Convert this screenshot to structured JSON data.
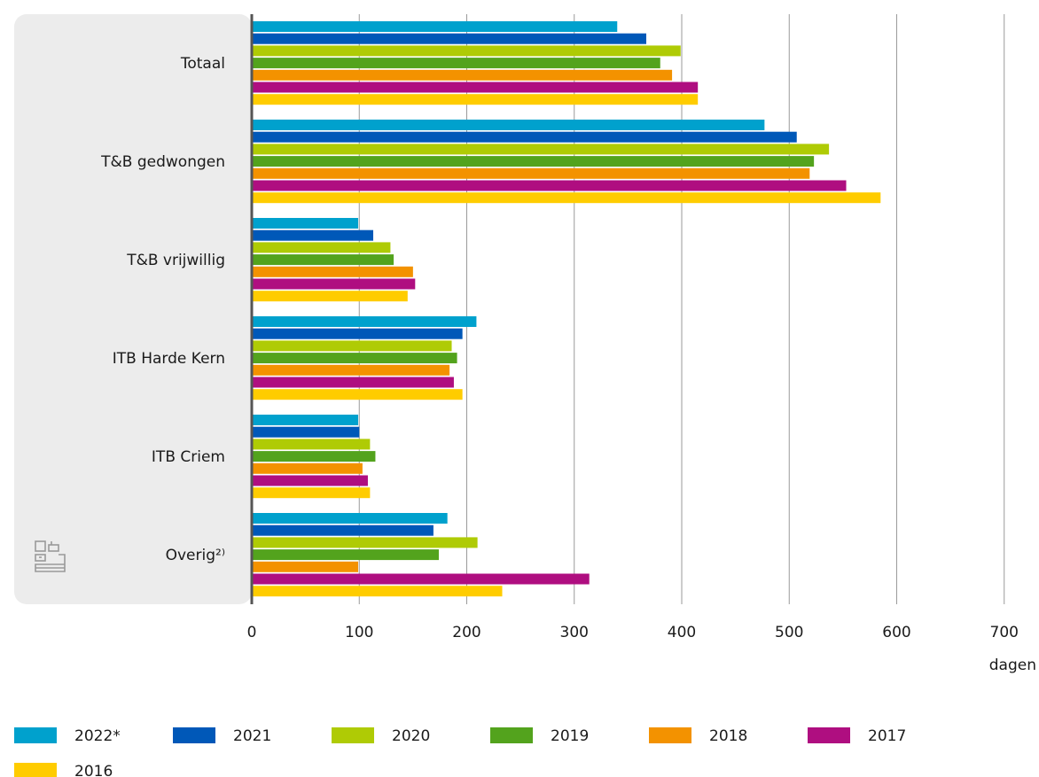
{
  "chart_data": {
    "type": "bar",
    "orientation": "horizontal",
    "categories": [
      "Totaal",
      "T&B gedwongen",
      "T&B vrijwillig",
      "ITB Harde Kern",
      "ITB Criem",
      "Overig²⁾"
    ],
    "series": [
      {
        "name": "2022*",
        "color": "#00a1cd",
        "values": [
          340,
          477,
          99,
          209,
          99,
          182
        ]
      },
      {
        "name": "2021",
        "color": "#0058b8",
        "values": [
          367,
          507,
          113,
          196,
          100,
          169
        ]
      },
      {
        "name": "2020",
        "color": "#afcb05",
        "values": [
          399,
          537,
          129,
          186,
          110,
          210
        ]
      },
      {
        "name": "2019",
        "color": "#53a31d",
        "values": [
          380,
          523,
          132,
          191,
          115,
          174
        ]
      },
      {
        "name": "2018",
        "color": "#f39200",
        "values": [
          391,
          519,
          150,
          184,
          103,
          99
        ]
      },
      {
        "name": "2017",
        "color": "#af0e80",
        "values": [
          415,
          553,
          152,
          188,
          108,
          314
        ]
      },
      {
        "name": "2016",
        "color": "#ffcc00",
        "values": [
          415,
          585,
          145,
          196,
          110,
          233
        ]
      }
    ],
    "xticks": [
      "0",
      "100",
      "200",
      "300",
      "400",
      "500",
      "600",
      "700"
    ],
    "xlim": [
      0,
      700
    ],
    "xlabel": "dagen",
    "grid": true,
    "legend_position": "bottom"
  },
  "brand": {
    "logo": "cbs-logo"
  }
}
